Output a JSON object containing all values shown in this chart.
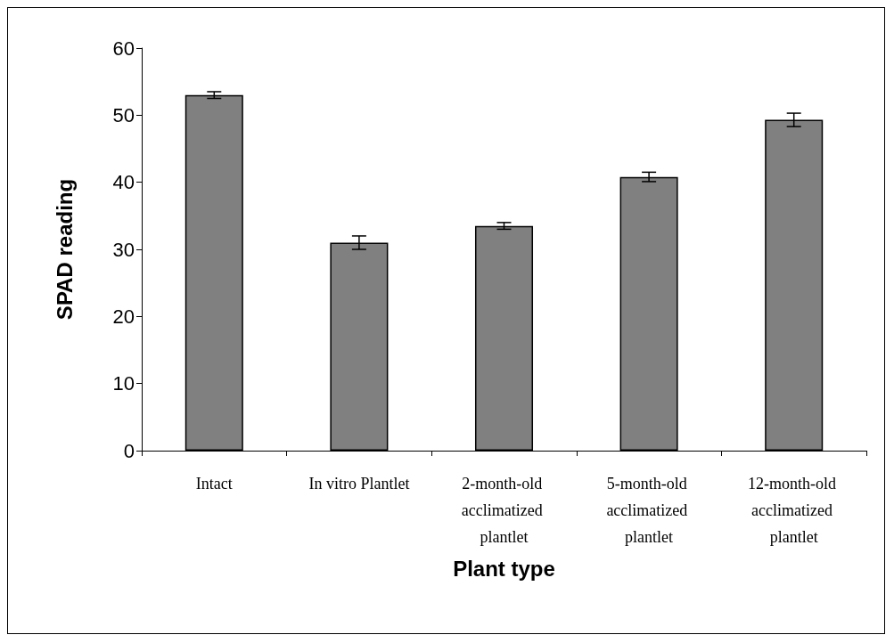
{
  "chart_data": {
    "type": "bar",
    "xlabel": "Plant type",
    "ylabel": "SPAD reading",
    "categories": [
      "Intact",
      "In vitro Plantlet",
      "2-month-old acclimatized plantlet",
      "5-month-old acclimatized plantlet",
      "12-month-old acclimatized plantlet"
    ],
    "values": [
      53,
      31,
      33.5,
      40.8,
      49.3
    ],
    "errors": [
      0.5,
      1,
      0.5,
      0.7,
      1
    ],
    "color": "#808080",
    "ylim": [
      0,
      60
    ],
    "yticks": [
      0,
      10,
      20,
      30,
      40,
      50,
      60
    ],
    "grid": false
  }
}
